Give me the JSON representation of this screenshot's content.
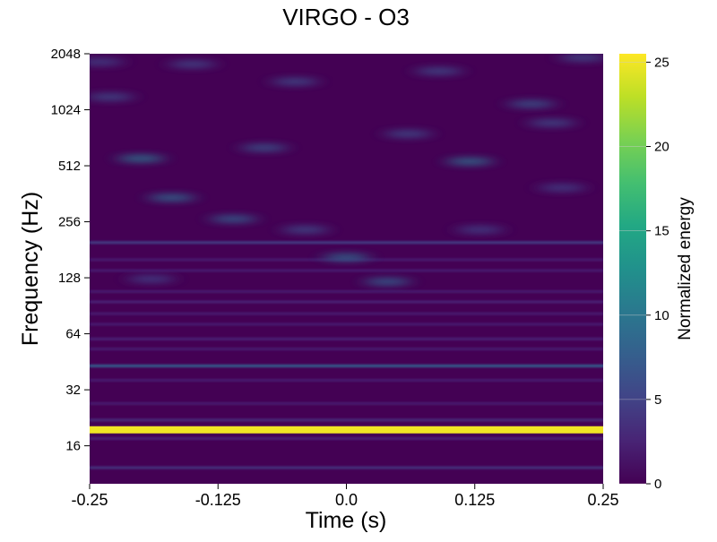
{
  "chart_data": {
    "type": "heatmap",
    "title": "VIRGO - O3",
    "xlabel": "Time (s)",
    "ylabel": "Frequency (Hz)",
    "xlim": [
      -0.25,
      0.25
    ],
    "ylim": [
      10,
      2048
    ],
    "yscale": "log2",
    "xticks": [
      -0.25,
      -0.125,
      0.0,
      0.125,
      0.25
    ],
    "xtick_labels": [
      "-0.25",
      "-0.125",
      "0.0",
      "0.125",
      "0.25"
    ],
    "yticks": [
      16,
      32,
      64,
      128,
      256,
      512,
      1024,
      2048
    ],
    "ytick_labels": [
      "16",
      "32",
      "64",
      "128",
      "256",
      "512",
      "1024",
      "2048"
    ],
    "colorbar": {
      "label": "Normalized energy",
      "range": [
        0,
        25.5
      ],
      "ticks": [
        0,
        5,
        10,
        15,
        20,
        25
      ],
      "tick_labels": [
        "0",
        "5",
        "10",
        "15",
        "20",
        "25"
      ],
      "colormap": "viridis"
    },
    "grid": false,
    "lines": [
      {
        "freq": 19.5,
        "energy": 25.0
      },
      {
        "freq": 43,
        "energy": 7.5
      },
      {
        "freq": 12.2,
        "energy": 3.5
      },
      {
        "freq": 22,
        "energy": 3.0
      },
      {
        "freq": 17.5,
        "energy": 2.5
      },
      {
        "freq": 27,
        "energy": 2.0
      },
      {
        "freq": 36,
        "energy": 2.0
      },
      {
        "freq": 53,
        "energy": 2.0
      },
      {
        "freq": 60,
        "energy": 2.5
      },
      {
        "freq": 72,
        "energy": 2.0
      },
      {
        "freq": 82,
        "energy": 2.0
      },
      {
        "freq": 95,
        "energy": 2.5
      },
      {
        "freq": 108,
        "energy": 2.0
      },
      {
        "freq": 140,
        "energy": 2.0
      },
      {
        "freq": 160,
        "energy": 2.0
      },
      {
        "freq": 198,
        "energy": 4.5
      }
    ],
    "blobs": [
      {
        "t": 0.04,
        "freq": 122,
        "energy": 8.0
      },
      {
        "t": -0.19,
        "freq": 126,
        "energy": 5.0
      },
      {
        "t": 0.0,
        "freq": 165,
        "energy": 9.0
      },
      {
        "t": -0.04,
        "freq": 232,
        "energy": 6.0
      },
      {
        "t": -0.11,
        "freq": 265,
        "energy": 8.0
      },
      {
        "t": 0.13,
        "freq": 232,
        "energy": 5.0
      },
      {
        "t": -0.17,
        "freq": 345,
        "energy": 9.0
      },
      {
        "t": -0.2,
        "freq": 560,
        "energy": 10.0
      },
      {
        "t": 0.12,
        "freq": 540,
        "energy": 9.5
      },
      {
        "t": -0.08,
        "freq": 640,
        "energy": 7.0
      },
      {
        "t": 0.06,
        "freq": 760,
        "energy": 6.0
      },
      {
        "t": 0.2,
        "freq": 870,
        "energy": 6.0
      },
      {
        "t": 0.21,
        "freq": 390,
        "energy": 5.0
      },
      {
        "t": -0.23,
        "freq": 1200,
        "energy": 6.0
      },
      {
        "t": -0.05,
        "freq": 1450,
        "energy": 6.0
      },
      {
        "t": 0.18,
        "freq": 1100,
        "energy": 7.0
      },
      {
        "t": 0.09,
        "freq": 1650,
        "energy": 6.0
      },
      {
        "t": -0.15,
        "freq": 1800,
        "energy": 5.5
      },
      {
        "t": 0.23,
        "freq": 1950,
        "energy": 6.0
      },
      {
        "t": -0.24,
        "freq": 1850,
        "energy": 5.0
      }
    ]
  }
}
